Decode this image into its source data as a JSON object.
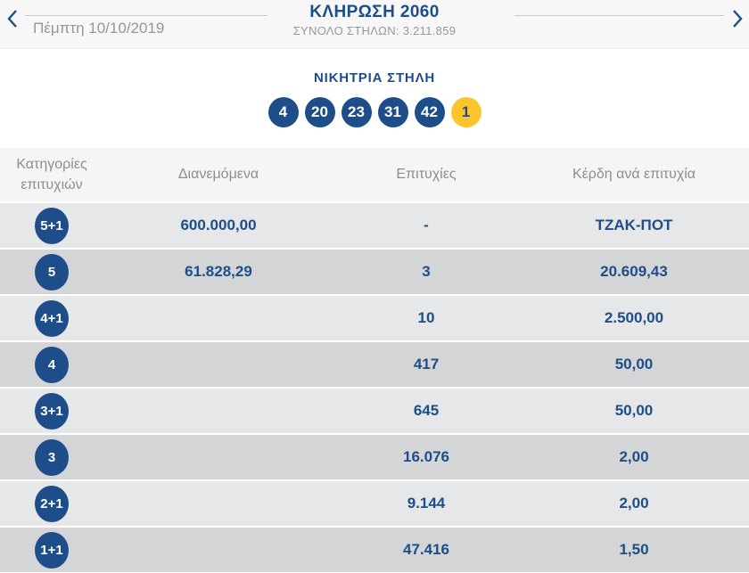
{
  "colors": {
    "brand_blue": "#1d4e89",
    "joker_yellow": "#fdc52d",
    "muted_text": "#97979a",
    "row_light": "#e6e7e8",
    "row_dark": "#d4d5d6"
  },
  "header": {
    "title": "ΚΛΗΡΩΣΗ 2060",
    "date": "Πέμπτη 10/10/2019",
    "total_columns": "ΣΥΝΟΛΟ ΣΤΗΛΩΝ: 3.211.859"
  },
  "winning": {
    "title": "ΝΙΚΗΤΡΙΑ ΣΤΗΛΗ",
    "numbers": [
      {
        "value": "4",
        "type": "main"
      },
      {
        "value": "20",
        "type": "main"
      },
      {
        "value": "23",
        "type": "main"
      },
      {
        "value": "31",
        "type": "main"
      },
      {
        "value": "42",
        "type": "main"
      },
      {
        "value": "1",
        "type": "joker"
      }
    ]
  },
  "table": {
    "headers": {
      "category": "Κατηγορίες επιτυχιών",
      "distributed": "Διανεμόμενα",
      "winners": "Επιτυχίες",
      "prize": "Κέρδη ανά επιτυχία"
    },
    "rows": [
      {
        "category": "5+1",
        "distributed": "600.000,00",
        "winners": "-",
        "prize": "ΤΖΑΚ-ΠΟΤ"
      },
      {
        "category": "5",
        "distributed": "61.828,29",
        "winners": "3",
        "prize": "20.609,43"
      },
      {
        "category": "4+1",
        "distributed": "",
        "winners": "10",
        "prize": "2.500,00"
      },
      {
        "category": "4",
        "distributed": "",
        "winners": "417",
        "prize": "50,00"
      },
      {
        "category": "3+1",
        "distributed": "",
        "winners": "645",
        "prize": "50,00"
      },
      {
        "category": "3",
        "distributed": "",
        "winners": "16.076",
        "prize": "2,00"
      },
      {
        "category": "2+1",
        "distributed": "",
        "winners": "9.144",
        "prize": "2,00"
      },
      {
        "category": "1+1",
        "distributed": "",
        "winners": "47.416",
        "prize": "1,50"
      }
    ]
  }
}
